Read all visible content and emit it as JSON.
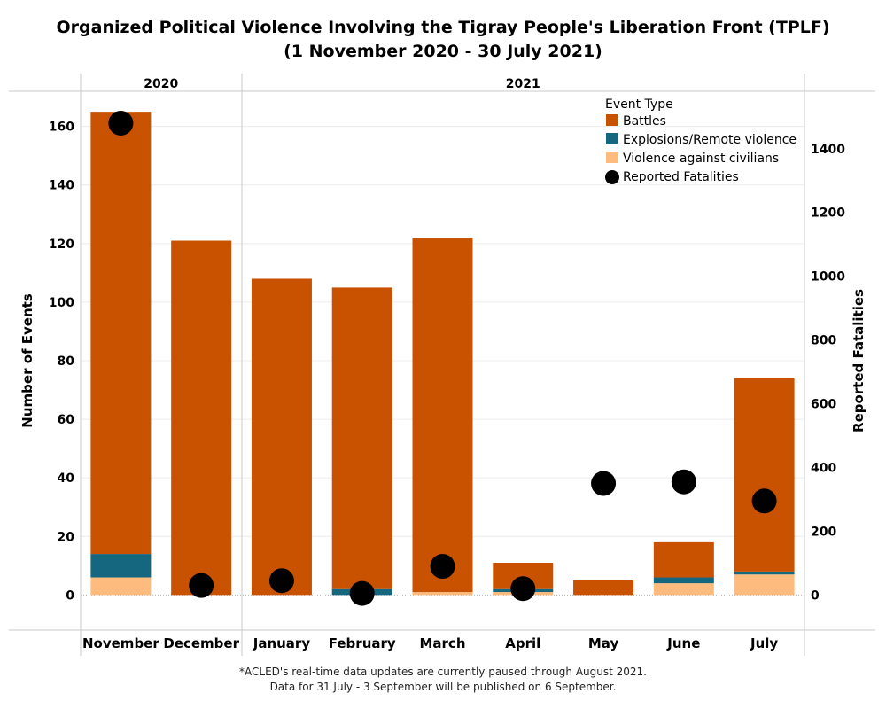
{
  "title_line1": "Organized Political Violence Involving the Tigray People's Liberation Front (TPLF)",
  "title_line2": "(1 November 2020 - 30 July 2021)",
  "footnote_line1": "*ACLED's real-time data updates are currently paused through August 2021.",
  "footnote_line2": "Data for 31 July - 3 September will be published on 6 September.",
  "chart_data": {
    "type": "bar",
    "stacked": true,
    "year_groups": [
      {
        "label": "2020",
        "months": [
          "November",
          "December"
        ]
      },
      {
        "label": "2021",
        "months": [
          "January",
          "February",
          "March",
          "April",
          "May",
          "June",
          "July"
        ]
      }
    ],
    "categories": [
      "November",
      "December",
      "January",
      "February",
      "March",
      "April",
      "May",
      "June",
      "July"
    ],
    "series": [
      {
        "name": "Violence against civilians",
        "color": "#FDBB7E",
        "values": [
          6,
          0,
          0,
          0,
          1,
          1,
          0,
          4,
          7
        ]
      },
      {
        "name": "Explosions/Remote violence",
        "color": "#15667F",
        "values": [
          8,
          0,
          0,
          2,
          0,
          1,
          0,
          2,
          1
        ]
      },
      {
        "name": "Battles",
        "color": "#C85200",
        "values": [
          151,
          121,
          108,
          103,
          121,
          9,
          5,
          12,
          66
        ]
      }
    ],
    "fatalities": {
      "name": "Reported Fatalities",
      "color": "#000000",
      "values": [
        1480,
        30,
        45,
        5,
        90,
        20,
        350,
        355,
        295
      ]
    },
    "ylabel": "Number of Events",
    "ylabel_right": "Reported Fatalities",
    "ylim": [
      -12,
      172
    ],
    "yticks": [
      0,
      20,
      40,
      60,
      80,
      100,
      120,
      140,
      160
    ],
    "ylim_right": [
      -110,
      1580
    ],
    "yticks_right": [
      0,
      200,
      400,
      600,
      800,
      1000,
      1200,
      1400
    ],
    "legend_title": "Event Type",
    "legend": [
      "Battles",
      "Explosions/Remote violence",
      "Violence against civilians",
      "Reported Fatalities"
    ],
    "legend_position": "top-right",
    "grid": true
  }
}
